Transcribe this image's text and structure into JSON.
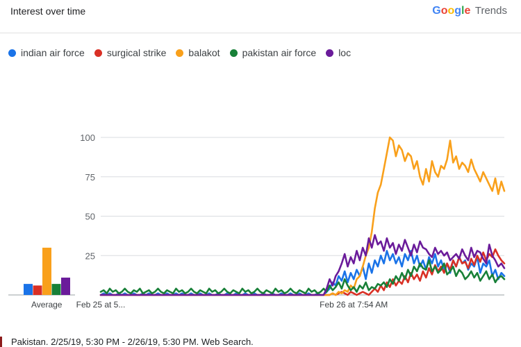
{
  "header": {
    "title": "Interest over time",
    "brand_google": "Google",
    "brand_trends": "Trends"
  },
  "colors": {
    "indian_air_force": "#1a73e8",
    "surgical_strike": "#d93025",
    "balakot": "#f9a01b",
    "pakistan_air_force": "#188038",
    "loc": "#6a1b9a"
  },
  "footer": {
    "text": "Pakistan. 2/25/19, 5:30 PM - 2/26/19, 5:30 PM. Web Search."
  },
  "chart_data": {
    "type": "line",
    "ylim": [
      0,
      100
    ],
    "y_ticks": [
      25,
      50,
      75,
      100
    ],
    "x_tick_labels": [
      {
        "label": "Feb 25 at 5...",
        "index": 0
      },
      {
        "label": "Feb 26 at 7:54 AM",
        "index": 84
      }
    ],
    "grid": true,
    "legend_position": "top-left",
    "average_label": "Average",
    "averages": [
      {
        "name": "indian air force",
        "value": 7
      },
      {
        "name": "surgical strike",
        "value": 6
      },
      {
        "name": "balakot",
        "value": 30
      },
      {
        "name": "pakistan air force",
        "value": 7
      },
      {
        "name": "loc",
        "value": 11
      }
    ],
    "series": [
      {
        "name": "indian air force",
        "color": "#1a73e8",
        "values": [
          0,
          1,
          0,
          1,
          0,
          0,
          1,
          0,
          1,
          0,
          0,
          1,
          0,
          0,
          1,
          0,
          1,
          0,
          0,
          1,
          0,
          0,
          1,
          0,
          0,
          1,
          0,
          1,
          0,
          0,
          1,
          0,
          0,
          1,
          0,
          0,
          1,
          0,
          0,
          1,
          0,
          0,
          1,
          0,
          0,
          1,
          0,
          0,
          1,
          0,
          0,
          1,
          0,
          0,
          1,
          0,
          0,
          1,
          0,
          0,
          1,
          0,
          0,
          1,
          0,
          0,
          1,
          0,
          0,
          1,
          0,
          0,
          1,
          0,
          0,
          2,
          4,
          8,
          6,
          12,
          9,
          15,
          8,
          14,
          10,
          16,
          12,
          18,
          10,
          20,
          14,
          22,
          18,
          25,
          20,
          28,
          22,
          26,
          20,
          24,
          18,
          26,
          22,
          28,
          20,
          25,
          18,
          22,
          16,
          24,
          20,
          26,
          18,
          22,
          16,
          20,
          14,
          22,
          18,
          24,
          20,
          22,
          16,
          20,
          18,
          24,
          14,
          20,
          18,
          22,
          12,
          16,
          10,
          14,
          12
        ]
      },
      {
        "name": "surgical strike",
        "color": "#d93025",
        "values": [
          0,
          0,
          0,
          0,
          0,
          0,
          0,
          0,
          0,
          0,
          0,
          0,
          0,
          0,
          0,
          0,
          0,
          0,
          0,
          0,
          0,
          0,
          0,
          0,
          0,
          0,
          0,
          0,
          0,
          0,
          0,
          0,
          0,
          0,
          0,
          0,
          0,
          0,
          0,
          0,
          0,
          0,
          0,
          0,
          0,
          0,
          0,
          0,
          0,
          0,
          0,
          0,
          0,
          0,
          0,
          0,
          0,
          0,
          0,
          0,
          0,
          0,
          0,
          0,
          0,
          0,
          0,
          0,
          0,
          0,
          0,
          0,
          0,
          0,
          0,
          0,
          0,
          1,
          0,
          1,
          2,
          1,
          0,
          2,
          1,
          0,
          1,
          2,
          1,
          0,
          2,
          4,
          2,
          6,
          3,
          8,
          5,
          10,
          6,
          9,
          7,
          12,
          8,
          14,
          10,
          13,
          9,
          15,
          11,
          17,
          13,
          19,
          15,
          18,
          14,
          20,
          16,
          22,
          18,
          24,
          20,
          21,
          17,
          23,
          19,
          25,
          21,
          27,
          22,
          26,
          24,
          29,
          25,
          22,
          20
        ]
      },
      {
        "name": "balakot",
        "color": "#f9a01b",
        "values": [
          0,
          0,
          0,
          0,
          0,
          0,
          0,
          0,
          0,
          0,
          0,
          0,
          0,
          0,
          0,
          0,
          0,
          0,
          0,
          0,
          0,
          0,
          0,
          0,
          0,
          0,
          0,
          0,
          0,
          0,
          0,
          0,
          0,
          0,
          0,
          0,
          0,
          0,
          0,
          0,
          0,
          0,
          0,
          0,
          0,
          0,
          0,
          0,
          0,
          0,
          0,
          0,
          0,
          0,
          0,
          0,
          0,
          0,
          0,
          0,
          0,
          0,
          0,
          0,
          0,
          0,
          0,
          0,
          0,
          0,
          0,
          0,
          0,
          0,
          0,
          0,
          0,
          1,
          0,
          2,
          1,
          3,
          2,
          6,
          4,
          10,
          12,
          18,
          25,
          30,
          40,
          55,
          65,
          70,
          80,
          90,
          100,
          98,
          88,
          95,
          92,
          85,
          90,
          88,
          80,
          85,
          75,
          70,
          80,
          72,
          85,
          78,
          75,
          82,
          80,
          86,
          98,
          84,
          88,
          80,
          84,
          82,
          78,
          86,
          80,
          76,
          72,
          78,
          74,
          70,
          66,
          74,
          64,
          72,
          66
        ]
      },
      {
        "name": "pakistan air force",
        "color": "#188038",
        "values": [
          2,
          3,
          1,
          4,
          2,
          3,
          1,
          2,
          4,
          2,
          1,
          3,
          2,
          4,
          1,
          2,
          3,
          1,
          2,
          4,
          2,
          1,
          3,
          2,
          1,
          4,
          2,
          3,
          1,
          2,
          4,
          2,
          1,
          3,
          2,
          1,
          4,
          2,
          3,
          1,
          2,
          4,
          2,
          1,
          3,
          2,
          1,
          4,
          2,
          3,
          1,
          2,
          4,
          2,
          1,
          3,
          2,
          1,
          4,
          2,
          3,
          1,
          2,
          4,
          2,
          1,
          3,
          2,
          1,
          4,
          2,
          3,
          1,
          2,
          4,
          2,
          6,
          3,
          5,
          8,
          4,
          10,
          6,
          3,
          5,
          2,
          6,
          4,
          8,
          3,
          5,
          4,
          7,
          6,
          8,
          5,
          10,
          7,
          12,
          9,
          14,
          10,
          16,
          12,
          18,
          15,
          20,
          17,
          16,
          22,
          15,
          18,
          14,
          16,
          20,
          13,
          15,
          18,
          12,
          16,
          14,
          10,
          12,
          15,
          11,
          14,
          9,
          12,
          15,
          10,
          13,
          8,
          11,
          12,
          10
        ]
      },
      {
        "name": "loc",
        "color": "#6a1b9a",
        "values": [
          0,
          0,
          0,
          0,
          0,
          0,
          0,
          0,
          0,
          0,
          0,
          0,
          0,
          0,
          0,
          0,
          0,
          0,
          0,
          0,
          0,
          0,
          0,
          0,
          0,
          0,
          0,
          0,
          0,
          0,
          0,
          0,
          0,
          0,
          0,
          0,
          0,
          0,
          0,
          0,
          0,
          0,
          0,
          0,
          0,
          0,
          0,
          0,
          0,
          0,
          0,
          0,
          0,
          0,
          0,
          0,
          0,
          0,
          0,
          0,
          0,
          0,
          0,
          0,
          0,
          0,
          0,
          0,
          0,
          0,
          0,
          0,
          0,
          0,
          0,
          4,
          10,
          6,
          12,
          15,
          20,
          26,
          18,
          24,
          20,
          28,
          22,
          30,
          25,
          36,
          30,
          38,
          32,
          34,
          28,
          36,
          30,
          33,
          26,
          32,
          28,
          35,
          30,
          25,
          32,
          27,
          34,
          30,
          29,
          26,
          24,
          30,
          26,
          28,
          25,
          27,
          22,
          24,
          26,
          23,
          29,
          25,
          22,
          30,
          24,
          28,
          27,
          23,
          20,
          32,
          25,
          22,
          18,
          20,
          17
        ]
      }
    ]
  }
}
